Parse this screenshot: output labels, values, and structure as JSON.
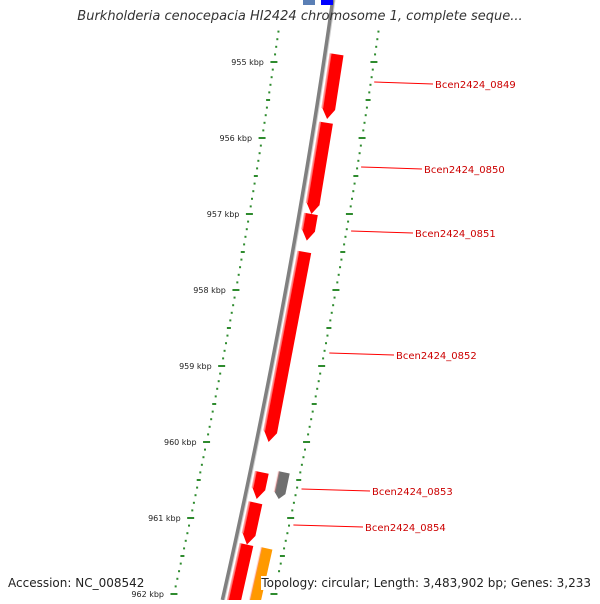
{
  "title": "Burkholderia cenocepacia HI2424 chromosome 1, complete seque...",
  "footer": {
    "accession": "Accession: NC_008542",
    "summary": "Topology: circular; Length: 3,483,902 bp; Genes: 3,233"
  },
  "colors": {
    "gene_fill": "#ff0000",
    "gene_label": "#cc0000",
    "tick": "#2e8b2e",
    "backbone": "#808080",
    "other_feature": "#6f6f6f",
    "orange_feature": "#ff9900",
    "blue_feature": "#0000ff"
  },
  "scale": {
    "ticks": [
      {
        "kbp": 955,
        "label": "955 kbp"
      },
      {
        "kbp": 956,
        "label": "956 kbp"
      },
      {
        "kbp": 957,
        "label": "957 kbp"
      },
      {
        "kbp": 958,
        "label": "958 kbp"
      },
      {
        "kbp": 959,
        "label": "959 kbp"
      },
      {
        "kbp": 960,
        "label": "960 kbp"
      },
      {
        "kbp": 961,
        "label": "961 kbp"
      },
      {
        "kbp": 962,
        "label": "962 kbp"
      }
    ]
  },
  "genes": [
    {
      "name": "Bcen2424_0849",
      "start_kbp": 954.9,
      "end_kbp": 955.75,
      "strand": "minus"
    },
    {
      "name": "Bcen2424_0850",
      "start_kbp": 955.8,
      "end_kbp": 957.0,
      "strand": "minus"
    },
    {
      "name": "Bcen2424_0851",
      "start_kbp": 957.0,
      "end_kbp": 957.35,
      "strand": "minus"
    },
    {
      "name": "Bcen2424_0852",
      "start_kbp": 957.5,
      "end_kbp": 960.0,
      "strand": "minus"
    },
    {
      "name": "Bcen2424_0853",
      "start_kbp": 960.4,
      "end_kbp": 960.75,
      "strand": "minus"
    },
    {
      "name": "Bcen2424_0854",
      "start_kbp": 960.8,
      "end_kbp": 961.35,
      "strand": "minus"
    }
  ]
}
